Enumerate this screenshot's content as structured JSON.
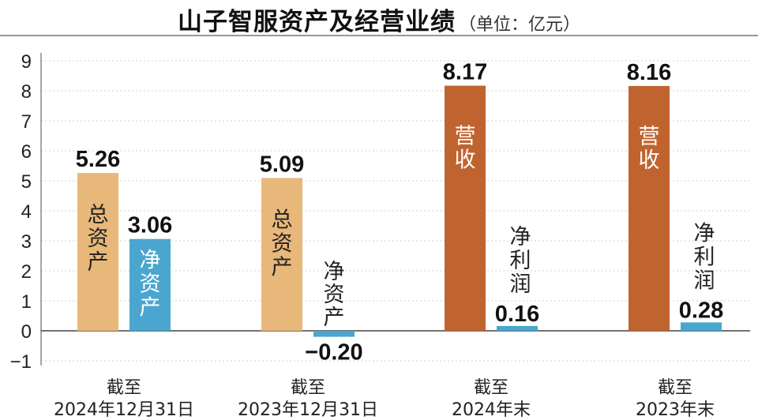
{
  "header": {
    "title": "山子智服资产及经营业绩",
    "unit": "（单位：亿元）"
  },
  "colors": {
    "tan": "#e8b77a",
    "blue": "#4aa6cf",
    "rust": "#c0642f",
    "grid": "#cfcfcf",
    "axis": "#888888"
  },
  "chart_data": {
    "type": "bar",
    "title": "山子智服资产及经营业绩",
    "unit": "亿元",
    "ylim": [
      -1,
      9
    ],
    "yticks": [
      "9",
      "8",
      "7",
      "6",
      "5",
      "4",
      "3",
      "2",
      "1",
      "0",
      "−1"
    ],
    "grid": true,
    "groups": [
      {
        "label_line1": "截至",
        "label_line2": "2024年12月31日",
        "bars": [
          {
            "label": "总资产",
            "value": 5.26,
            "value_label": "5.26",
            "color": "tan"
          },
          {
            "label": "净资产",
            "value": 3.06,
            "value_label": "3.06",
            "color": "blue"
          }
        ]
      },
      {
        "label_line1": "截至",
        "label_line2": "2023年12月31日",
        "bars": [
          {
            "label": "总资产",
            "value": 5.09,
            "value_label": "5.09",
            "color": "tan"
          },
          {
            "label": "净资产",
            "value": -0.2,
            "value_label": "−0.20",
            "color": "blue"
          }
        ]
      },
      {
        "label_line1": "截至",
        "label_line2": "2024年末",
        "bars": [
          {
            "label": "营收",
            "value": 8.17,
            "value_label": "8.17",
            "color": "rust"
          },
          {
            "label": "净利润",
            "value": 0.16,
            "value_label": "0.16",
            "color": "blue"
          }
        ]
      },
      {
        "label_line1": "截至",
        "label_line2": "2023年末",
        "bars": [
          {
            "label": "营收",
            "value": 8.16,
            "value_label": "8.16",
            "color": "rust"
          },
          {
            "label": "净利润",
            "value": 0.28,
            "value_label": "0.28",
            "color": "blue"
          }
        ]
      }
    ]
  }
}
